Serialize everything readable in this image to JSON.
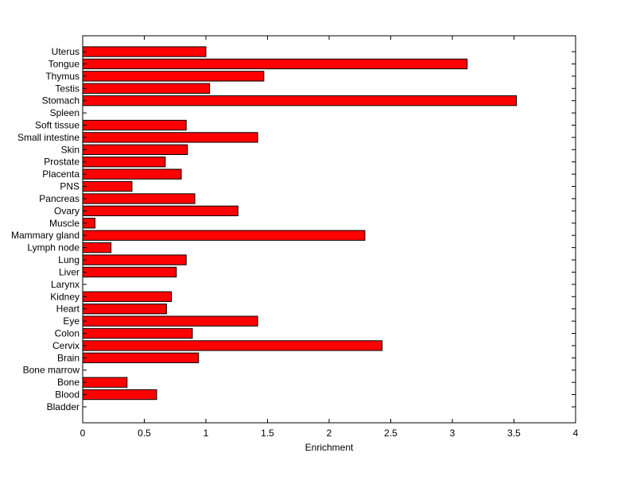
{
  "chart_data": {
    "type": "bar",
    "orientation": "horizontal",
    "xlabel": "Enrichment",
    "ylabel": "",
    "title": "",
    "xlim": [
      0,
      4
    ],
    "xticks": [
      0,
      0.5,
      1,
      1.5,
      2,
      2.5,
      3,
      3.5,
      4
    ],
    "xtick_labels": [
      "0",
      "0.5",
      "1",
      "1.5",
      "2",
      "2.5",
      "3",
      "3.5",
      "4"
    ],
    "grid": false,
    "legend": "none",
    "bar_color": "#ff0000",
    "categories": [
      "Bladder",
      "Blood",
      "Bone",
      "Bone marrow",
      "Brain",
      "Cervix",
      "Colon",
      "Eye",
      "Heart",
      "Kidney",
      "Larynx",
      "Liver",
      "Lung",
      "Lymph node",
      "Mammary gland",
      "Muscle",
      "Ovary",
      "Pancreas",
      "PNS",
      "Placenta",
      "Prostate",
      "Skin",
      "Small intestine",
      "Soft tissue",
      "Spleen",
      "Stomach",
      "Testis",
      "Thymus",
      "Tongue",
      "Uterus"
    ],
    "values": [
      0,
      0.6,
      0.36,
      0,
      0.94,
      2.43,
      0.89,
      1.42,
      0.68,
      0.72,
      0,
      0.76,
      0.84,
      0.23,
      2.29,
      0.1,
      1.26,
      0.91,
      0.4,
      0.8,
      0.67,
      0.85,
      1.42,
      0.84,
      0,
      3.52,
      1.03,
      1.47,
      3.12,
      1.0
    ]
  }
}
